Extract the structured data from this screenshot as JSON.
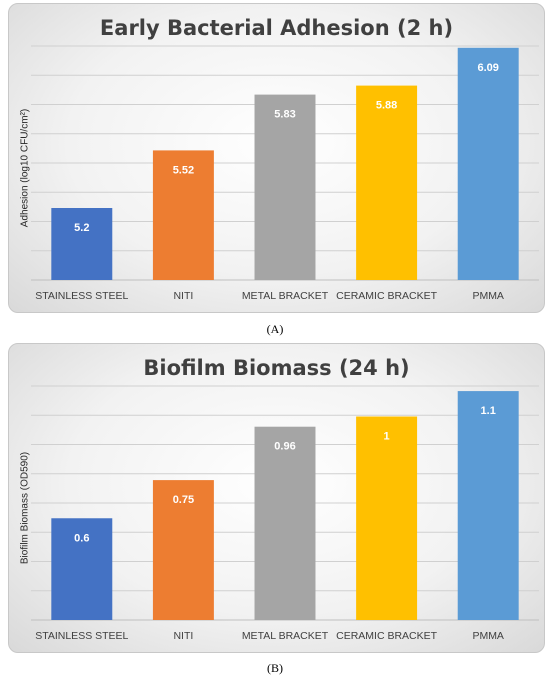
{
  "chart_data": [
    {
      "type": "bar",
      "title": "Early Bacterial Adhesion (2 h)",
      "xlabel": "",
      "ylabel": "Adhesion (log10 CFU/cm²)",
      "categories": [
        "STAINLESS STEEL",
        "NITI",
        "METAL BRACKET",
        "CERAMIC BRACKET",
        "PMMA"
      ],
      "values": [
        5.2,
        5.52,
        5.83,
        5.88,
        6.09
      ],
      "data_labels": [
        "5.2",
        "5.52",
        "5.83",
        "5.88",
        "6.09"
      ],
      "ylim": [
        4.8,
        6.1
      ],
      "grid": true,
      "colors": [
        "#4472c4",
        "#ed7d31",
        "#a5a5a5",
        "#ffc000",
        "#5b9bd5"
      ]
    },
    {
      "type": "bar",
      "title": "Biofilm Biomass (24 h)",
      "xlabel": "",
      "ylabel": "Biofilm Biomass (OD590)",
      "categories": [
        "STAINLESS STEEL",
        "NITI",
        "METAL BRACKET",
        "CERAMIC BRACKET",
        "PMMA"
      ],
      "values": [
        0.6,
        0.75,
        0.96,
        1,
        1.1
      ],
      "data_labels": [
        "0.6",
        "0.75",
        "0.96",
        "1",
        "1.1"
      ],
      "ylim": [
        0.2,
        1.12
      ],
      "grid": true,
      "colors": [
        "#4472c4",
        "#ed7d31",
        "#a5a5a5",
        "#ffc000",
        "#5b9bd5"
      ]
    }
  ],
  "panel_labels": [
    "(A)",
    "(B)"
  ]
}
